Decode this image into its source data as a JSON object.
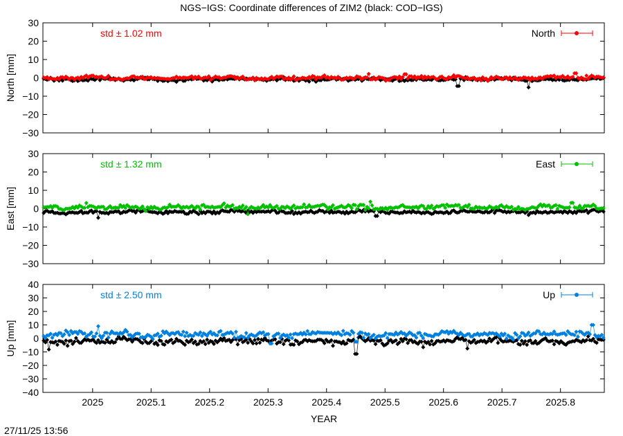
{
  "title": "NGS−IGS: Coordinate differences of ZIM2 (black: COD−IGS)",
  "timestamp": "27/11/25 13:56",
  "chart_data": {
    "type": "scatter",
    "xlabel": "YEAR",
    "xlim": [
      2024.915,
      2025.875
    ],
    "xticks": [
      "2025",
      "2025.1",
      "2025.2",
      "2025.3",
      "2025.4",
      "2025.5",
      "2025.6",
      "2025.7",
      "2025.8"
    ],
    "panels": [
      {
        "ylabel": "North [mm]",
        "ylim": [
          -30,
          30
        ],
        "yticks": [
          "30",
          "20",
          "10",
          "0",
          "−10",
          "−20",
          "−30"
        ],
        "std_text": "std ± 1.02 mm",
        "legend": "North",
        "color": "#ff0000",
        "series": [
          {
            "name": "North",
            "color": "#ff0000",
            "base": 0.0,
            "spread": 1.0,
            "spikes": [
              [
                2025.472,
                2.2
              ],
              [
                2025.825,
                2.5
              ],
              [
                2025.535,
                2.0
              ]
            ]
          },
          {
            "name": "COD−IGS",
            "color": "#000000",
            "base": -0.8,
            "spread": 0.9,
            "spikes": [
              [
                2025.625,
                -4.5
              ],
              [
                2025.745,
                -5.2
              ]
            ]
          }
        ]
      },
      {
        "ylabel": "East [mm]",
        "ylim": [
          -30,
          30
        ],
        "yticks": [
          "30",
          "20",
          "10",
          "0",
          "−10",
          "−20",
          "−30"
        ],
        "std_text": "std ± 1.32 mm",
        "legend": "East",
        "color": "#00c000",
        "series": [
          {
            "name": "East",
            "color": "#00c000",
            "base": 0.8,
            "spread": 1.2,
            "spikes": [
              [
                2025.475,
                3.8
              ],
              [
                2025.265,
                -3.0
              ],
              [
                2025.82,
                3.2
              ]
            ]
          },
          {
            "name": "COD−IGS",
            "color": "#000000",
            "base": -1.8,
            "spread": 0.9,
            "spikes": [
              [
                2025.01,
                -5.0
              ],
              [
                2025.485,
                -4.0
              ],
              [
                2025.745,
                -3.5
              ]
            ]
          }
        ]
      },
      {
        "ylabel": "Up [mm]",
        "ylim": [
          -40,
          40
        ],
        "yticks": [
          "40",
          "30",
          "20",
          "10",
          "0",
          "−10",
          "−20",
          "−30",
          "−40"
        ],
        "std_text": "std ± 2.50 mm",
        "legend": "Up",
        "color": "#0080e0",
        "series": [
          {
            "name": "Up",
            "color": "#0080e0",
            "base": 3.0,
            "spread": 2.3,
            "spikes": [
              [
                2025.01,
                9.0
              ],
              [
                2025.305,
                -3.8
              ],
              [
                2025.45,
                -2.5
              ],
              [
                2025.855,
                10.0
              ]
            ]
          },
          {
            "name": "COD−IGS",
            "color": "#000000",
            "base": -2.0,
            "spread": 2.2,
            "spikes": [
              [
                2024.925,
                -8.2
              ],
              [
                2025.45,
                -11.5
              ],
              [
                2025.64,
                -7.5
              ],
              [
                2025.565,
                -6.5
              ]
            ]
          }
        ]
      }
    ]
  }
}
